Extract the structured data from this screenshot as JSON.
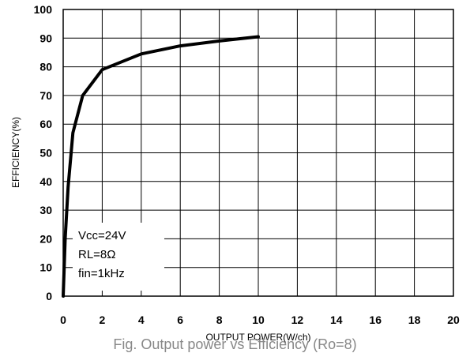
{
  "chart_data": {
    "type": "line",
    "xlabel": "OUTPUT POWER(W/ch)",
    "ylabel": "EFFICIENCY(%)",
    "xlim": [
      0,
      20
    ],
    "ylim": [
      0,
      100
    ],
    "x_ticks": [
      "0",
      "2",
      "4",
      "6",
      "8",
      "10",
      "12",
      "14",
      "16",
      "18",
      "20"
    ],
    "y_ticks": [
      "0",
      "10",
      "20",
      "30",
      "40",
      "50",
      "60",
      "70",
      "80",
      "90",
      "100"
    ],
    "grid": true,
    "series": [
      {
        "x": [
          0,
          0.1,
          0.25,
          0.5,
          1.0,
          2.0,
          4.0,
          6.0,
          8.0,
          10.0
        ],
        "values": [
          0,
          20,
          38,
          57,
          70,
          79,
          84.5,
          87.3,
          89,
          90.5
        ]
      }
    ],
    "annotations": [
      "Vcc=24V",
      "RL=8Ω",
      "fin=1kHz"
    ],
    "caption": "Fig.    Output power vs Efficiency (Ro=8)"
  }
}
